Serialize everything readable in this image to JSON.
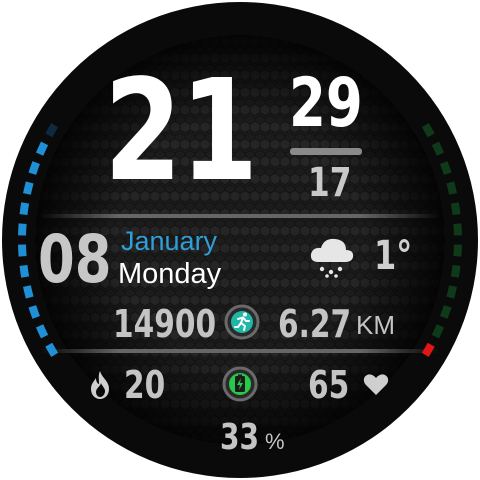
{
  "time": {
    "hour": "21",
    "minute": "29",
    "seconds": "17"
  },
  "date": {
    "day": "08",
    "month": "January",
    "weekday": "Monday"
  },
  "weather": {
    "temperature": "1°",
    "icon": "cloud-snow-icon"
  },
  "activity": {
    "steps": "14900",
    "distance": "6.27",
    "distance_unit": "KM",
    "step_icon": "running-person-icon"
  },
  "health": {
    "calories": "20",
    "calories_icon": "flame-icon",
    "heart_rate": "65",
    "heart_icon": "heart-icon"
  },
  "battery": {
    "percent": "33",
    "unit": "%",
    "icon": "charging-bolt-icon",
    "level_fraction": 0.33
  },
  "gauges": {
    "left_level_fraction": 0.92,
    "right_level_fraction": 0.08
  },
  "colors": {
    "accent_blue": "#1f8fd6",
    "accent_red": "#e01515",
    "accent_green": "#0f3a1a",
    "battery_green": "#28c84a",
    "step_teal": "#1fb8a8"
  }
}
